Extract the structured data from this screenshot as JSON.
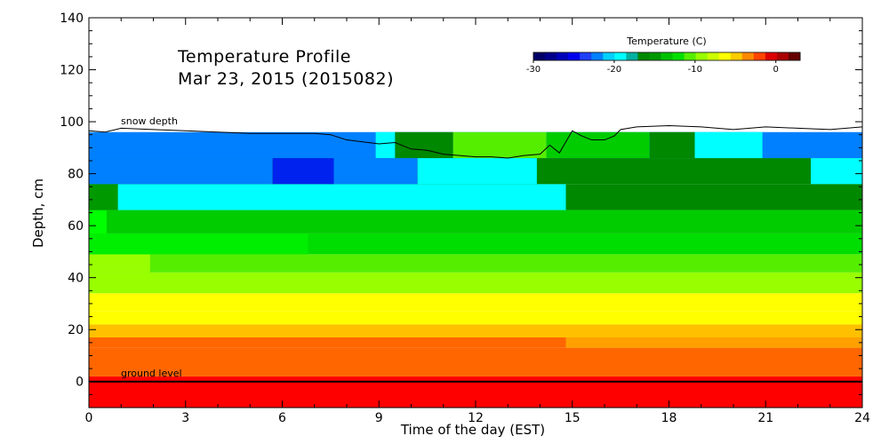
{
  "chart_data": {
    "type": "heatmap",
    "title": "Temperature Profile",
    "subtitle": "Mar 23, 2015 (2015082)",
    "xlabel": "Time of the day (EST)",
    "ylabel": "Depth, cm",
    "xlim": [
      0,
      24
    ],
    "ylim": [
      -10,
      140
    ],
    "x_ticks": [
      "0",
      "3",
      "6",
      "9",
      "12",
      "15",
      "18",
      "21",
      "24"
    ],
    "y_ticks": [
      "0",
      "20",
      "40",
      "60",
      "80",
      "100",
      "120",
      "140"
    ],
    "colorbar": {
      "title": "Temperature (C)",
      "range": [
        -30,
        3
      ],
      "tick_labels": [
        "-30",
        "-20",
        "-10",
        "0"
      ],
      "colors": [
        "#000066",
        "#00008b",
        "#0000bb",
        "#0000ee",
        "#1f3ff5",
        "#0080ff",
        "#00d0ff",
        "#00ffff",
        "#00b0a0",
        "#008800",
        "#009900",
        "#00c000",
        "#00e000",
        "#55ee00",
        "#99ff00",
        "#ccff00",
        "#ffff00",
        "#ffcc00",
        "#ff8800",
        "#ff4400",
        "#dd0000",
        "#aa0000",
        "#660000"
      ]
    },
    "annotations": [
      "snow depth",
      "ground level"
    ],
    "snow_depth": {
      "x": [
        0,
        0.5,
        1,
        2,
        3,
        4,
        5,
        6,
        7,
        7.5,
        8,
        9,
        9.5,
        10,
        10.5,
        11,
        11.5,
        12,
        12.5,
        13,
        13.5,
        14,
        14.3,
        14.6,
        15,
        15.3,
        15.6,
        16,
        16.3,
        16.5,
        17,
        18,
        19,
        20,
        21,
        22,
        23,
        24
      ],
      "y": [
        96.5,
        96,
        97.5,
        97,
        96.5,
        96,
        95.5,
        95.5,
        95.5,
        95,
        93,
        91.5,
        92,
        89.5,
        89,
        87.5,
        87,
        86.5,
        86.5,
        86,
        87,
        87.5,
        91,
        88,
        96.5,
        94.5,
        93,
        93,
        94.5,
        97,
        98,
        98.5,
        98,
        97,
        98,
        97.5,
        97,
        98
      ]
    },
    "ground_level": 0,
    "layers": [
      {
        "y0": -10,
        "y1": 2,
        "color": "#ff0000",
        "segments": []
      },
      {
        "y0": 2,
        "y1": 13,
        "color": "#ff6600",
        "segments": []
      },
      {
        "y0": 13,
        "y1": 17,
        "color": "#ff6600",
        "segments": [
          {
            "x0": 14.8,
            "x1": 24,
            "color": "#ffa000"
          }
        ]
      },
      {
        "y0": 17,
        "y1": 22,
        "color": "#ffc000",
        "segments": [
          {
            "x0": 0,
            "x1": 24,
            "color": "#ffc000"
          }
        ]
      },
      {
        "y0": 22,
        "y1": 27,
        "color": "#ffff00",
        "segments": []
      },
      {
        "y0": 27,
        "y1": 34,
        "color": "#ffff00",
        "segments": []
      },
      {
        "y0": 34,
        "y1": 42,
        "color": "#99ff00",
        "segments": []
      },
      {
        "y0": 42,
        "y1": 49,
        "color": "#55ee00",
        "segments": [
          {
            "x0": 0,
            "x1": 1.9,
            "color": "#99ff00"
          }
        ]
      },
      {
        "y0": 49,
        "y1": 57,
        "color": "#00dd00",
        "segments": [
          {
            "x0": 0,
            "x1": 6.8,
            "color": "#00ee00"
          }
        ]
      },
      {
        "y0": 57,
        "y1": 66,
        "color": "#00cc00",
        "segments": [
          {
            "x0": 0,
            "x1": 0.55,
            "color": "#00ff00"
          }
        ]
      },
      {
        "y0": 66,
        "y1": 76,
        "color": "#008800",
        "segments": [
          {
            "x0": 0,
            "x1": 0.9,
            "color": "#009900"
          },
          {
            "x0": 0.9,
            "x1": 14.8,
            "color": "#00ffff"
          }
        ]
      },
      {
        "y0": 76,
        "y1": 86,
        "color": "#008800",
        "segments": [
          {
            "x0": 0,
            "x1": 5.7,
            "color": "#0080ff"
          },
          {
            "x0": 5.7,
            "x1": 7.6,
            "color": "#0022ee"
          },
          {
            "x0": 7.6,
            "x1": 10.2,
            "color": "#0080ff"
          },
          {
            "x0": 10.2,
            "x1": 13.9,
            "color": "#00ffff"
          },
          {
            "x0": 22.4,
            "x1": 24,
            "color": "#00ffff"
          }
        ]
      },
      {
        "y0": 86,
        "y1": 96,
        "color": "#0080ff",
        "segments": [
          {
            "x0": 8.9,
            "x1": 9.5,
            "color": "#00ffff"
          },
          {
            "x0": 9.5,
            "x1": 11.3,
            "color": "#008800"
          },
          {
            "x0": 11.3,
            "x1": 14.2,
            "color": "#55ee00"
          },
          {
            "x0": 14.2,
            "x1": 17.4,
            "color": "#00cc00"
          },
          {
            "x0": 17.4,
            "x1": 18.8,
            "color": "#008800"
          },
          {
            "x0": 18.8,
            "x1": 20.9,
            "color": "#00ffff"
          }
        ]
      }
    ]
  }
}
